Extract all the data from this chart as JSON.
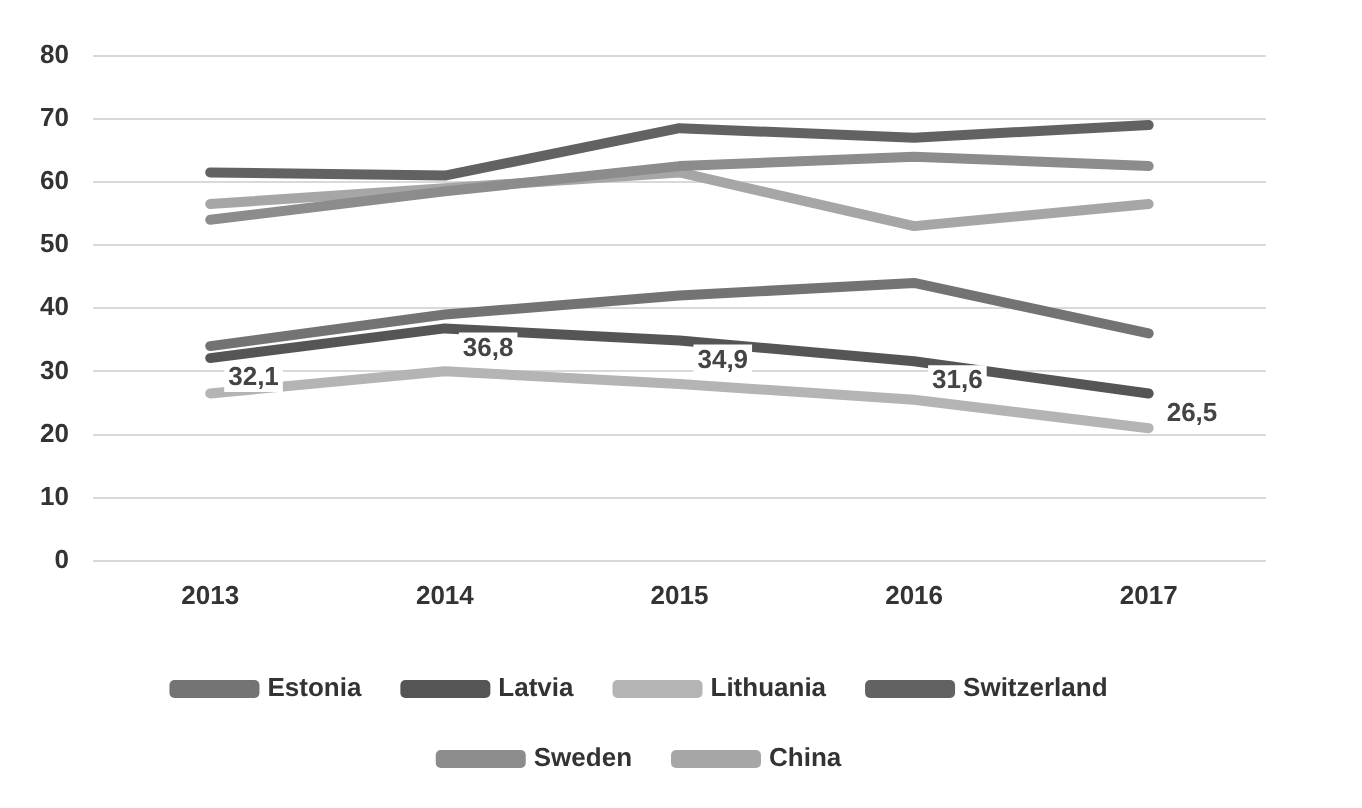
{
  "chart_data": {
    "type": "line",
    "categories": [
      "2013",
      "2014",
      "2015",
      "2016",
      "2017"
    ],
    "series": [
      {
        "name": "Estonia",
        "color": "#737373",
        "values": [
          34,
          39,
          42,
          44,
          36
        ]
      },
      {
        "name": "Latvia",
        "color": "#555555",
        "values": [
          32.1,
          36.8,
          34.9,
          31.6,
          26.5
        ],
        "value_labels": [
          "32,1",
          "36,8",
          "34,9",
          "31,6",
          "26,5"
        ]
      },
      {
        "name": "Lithuania",
        "color": "#b4b4b4",
        "values": [
          26.5,
          30,
          28,
          25.5,
          21
        ]
      },
      {
        "name": "Switzerland",
        "color": "#626262",
        "values": [
          61.5,
          61,
          68.5,
          67,
          69
        ]
      },
      {
        "name": "Sweden",
        "color": "#8c8c8c",
        "values": [
          54,
          58.5,
          62.5,
          64,
          62.5
        ]
      },
      {
        "name": "China",
        "color": "#a6a6a6",
        "values": [
          56.5,
          59,
          61.5,
          53,
          56.5
        ]
      }
    ],
    "ylim": [
      0,
      80
    ],
    "yticks": [
      0,
      10,
      20,
      30,
      40,
      50,
      60,
      70,
      80
    ],
    "grid": "y",
    "legend": "bottom",
    "marker": "none",
    "line_style": "solid"
  }
}
